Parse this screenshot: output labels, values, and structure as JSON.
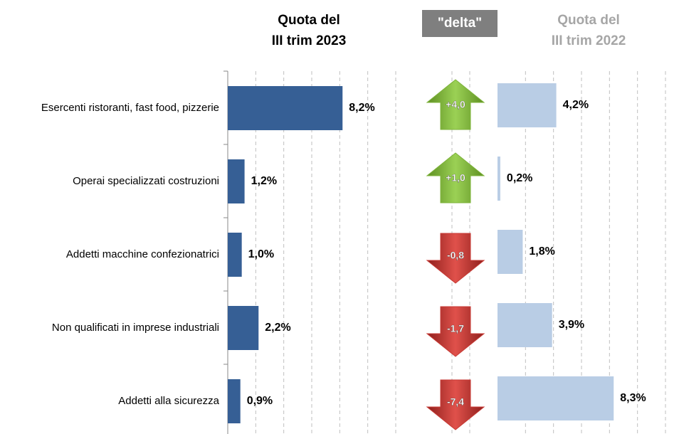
{
  "chart_data": {
    "type": "bar",
    "categories": [
      "Esercenti ristoranti, fast food, pizzerie",
      "Operai specializzati costruzioni",
      "Addetti macchine confezionatrici",
      "Non qualificati in imprese industriali",
      "Addetti alla sicurezza"
    ],
    "series": [
      {
        "name": "Quota del\nIII trim 2023",
        "color": "#365f95",
        "values": [
          8.2,
          1.2,
          1.0,
          2.2,
          0.9
        ],
        "value_labels": [
          "8,2%",
          "1,2%",
          "1,0%",
          "2,2%",
          "0,9%"
        ]
      },
      {
        "name": "Quota del\nIII trim 2022",
        "color": "#b9cde5",
        "values": [
          4.2,
          0.2,
          1.8,
          3.9,
          8.3
        ],
        "value_labels": [
          "4,2%",
          "0,2%",
          "1,8%",
          "3,9%",
          "8,3%"
        ]
      }
    ],
    "delta": {
      "name": "\"delta\"",
      "values": [
        4.0,
        1.0,
        -0.8,
        -1.7,
        -7.4
      ],
      "value_labels": [
        "+4,0",
        "+1,0",
        "-0,8",
        "-1,7",
        "-7,4"
      ],
      "up_color": "#7db33a",
      "down_color": "#c73a35"
    },
    "xlim": [
      0,
      12
    ],
    "xticks": [
      0,
      2,
      4,
      6,
      8,
      10,
      12
    ],
    "grid": true
  }
}
